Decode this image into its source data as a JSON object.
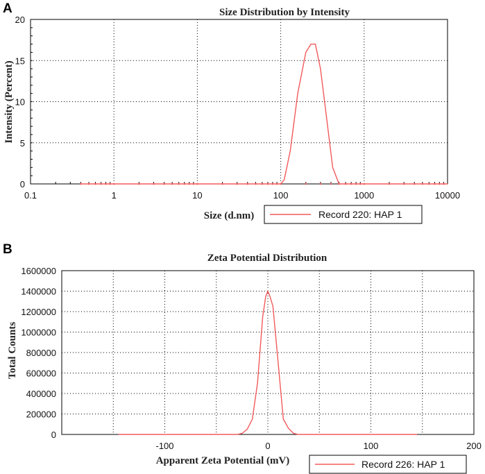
{
  "chart_data": [
    {
      "panel": "A",
      "type": "line",
      "title": "Size Distribution by Intensity",
      "xlabel": "Size (d.nm)",
      "ylabel": "Intensity (Percent)",
      "xscale": "log",
      "xlim": [
        0.1,
        10000
      ],
      "ylim": [
        0,
        20
      ],
      "xticks": [
        "0.1",
        "1",
        "10",
        "100",
        "1000",
        "10000"
      ],
      "yticks": [
        "0",
        "5",
        "10",
        "15",
        "20"
      ],
      "grid": true,
      "legend_placement": "bottom-right",
      "series": [
        {
          "name": "Record 220: HAP 1",
          "color": "#f25a5a",
          "x": [
            0.4,
            80,
            100,
            110,
            130,
            160,
            200,
            230,
            260,
            300,
            350,
            420,
            500,
            560,
            10000
          ],
          "y": [
            0,
            0,
            0,
            0.5,
            4,
            11,
            16,
            17,
            17,
            14,
            8.5,
            2,
            0,
            0,
            0
          ]
        }
      ]
    },
    {
      "panel": "B",
      "type": "line",
      "title": "Zeta Potential Distribution",
      "xlabel": "Apparent Zeta Potential (mV)",
      "ylabel": "Total Counts",
      "xlim": [
        -200,
        200
      ],
      "ylim": [
        0,
        1600000
      ],
      "xticks": [
        "-100",
        "0",
        "100",
        "200"
      ],
      "yticks": [
        "0",
        "200000",
        "400000",
        "600000",
        "800000",
        "1000000",
        "1200000",
        "1400000",
        "1600000"
      ],
      "grid": true,
      "legend_placement": "bottom-right",
      "series": [
        {
          "name": "Record 226: HAP 1",
          "color": "#f25a5a",
          "x": [
            -145,
            -30,
            -25,
            -20,
            -15,
            -10,
            -5,
            -2,
            0,
            2,
            5,
            10,
            15,
            20,
            25,
            30,
            145
          ],
          "y": [
            0,
            0,
            10000,
            50000,
            150000,
            500000,
            1150000,
            1350000,
            1400000,
            1350000,
            1250000,
            700000,
            150000,
            60000,
            10000,
            0,
            0
          ]
        }
      ]
    }
  ]
}
